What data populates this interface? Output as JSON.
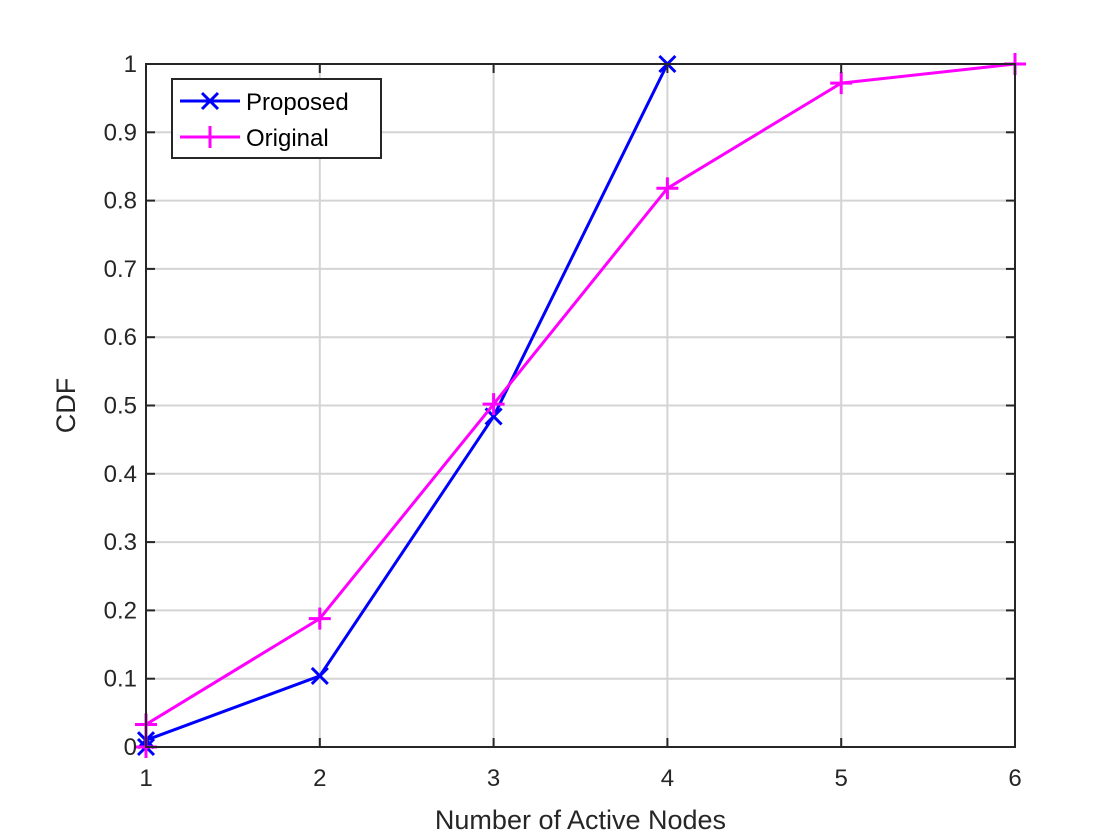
{
  "chart_data": {
    "type": "line",
    "title": "",
    "xlabel": "Number of Active Nodes",
    "ylabel": "CDF",
    "xlim": [
      1,
      6
    ],
    "ylim": [
      0,
      1
    ],
    "xticks": [
      1,
      2,
      3,
      4,
      5,
      6
    ],
    "yticks": [
      0,
      0.1,
      0.2,
      0.3,
      0.4,
      0.5,
      0.6,
      0.7,
      0.8,
      0.9,
      1
    ],
    "xtick_labels": [
      "1",
      "2",
      "3",
      "4",
      "5",
      "6"
    ],
    "ytick_labels": [
      "0",
      "0.1",
      "0.2",
      "0.3",
      "0.4",
      "0.5",
      "0.6",
      "0.7",
      "0.8",
      "0.9",
      "1"
    ],
    "grid": true,
    "legend_position": "top-left",
    "series": [
      {
        "name": "Proposed",
        "color": "#0000ff",
        "marker": "x",
        "x": [
          1,
          1,
          2,
          3,
          4
        ],
        "y": [
          0.0,
          0.01,
          0.104,
          0.484,
          1.0
        ]
      },
      {
        "name": "Original",
        "color": "#ff00ff",
        "marker": "+",
        "x": [
          1,
          1,
          2,
          3,
          4,
          5,
          6
        ],
        "y": [
          0.0,
          0.033,
          0.188,
          0.502,
          0.818,
          0.972,
          1.0
        ]
      }
    ]
  }
}
